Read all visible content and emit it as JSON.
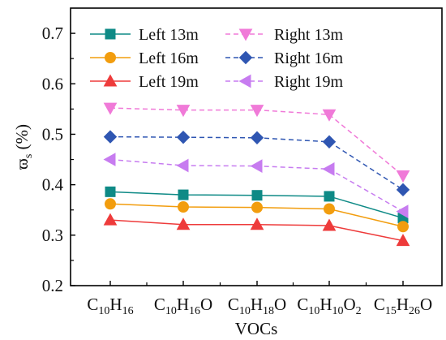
{
  "chart_data": {
    "type": "line",
    "xlabel": "VOCs",
    "ylabel": "ϖ",
    "ylabel_subscript": "s",
    "ylabel_unit": "(%)",
    "ylim": [
      0.2,
      0.75
    ],
    "yticks": [
      "0.2",
      "0.3",
      "0.4",
      "0.5",
      "0.6",
      "0.7"
    ],
    "categories": [
      {
        "base": "C",
        "parts": [
          [
            "10",
            true
          ],
          [
            "H",
            false
          ],
          [
            "16",
            true
          ]
        ]
      },
      {
        "base": "C",
        "parts": [
          [
            "10",
            true
          ],
          [
            "H",
            false
          ],
          [
            "16",
            true
          ],
          [
            "O",
            false
          ]
        ]
      },
      {
        "base": "C",
        "parts": [
          [
            "10",
            true
          ],
          [
            "H",
            false
          ],
          [
            "18",
            true
          ],
          [
            "O",
            false
          ]
        ]
      },
      {
        "base": "C",
        "parts": [
          [
            "10",
            true
          ],
          [
            "H",
            false
          ],
          [
            "10",
            true
          ],
          [
            "O",
            false
          ],
          [
            "2",
            true
          ]
        ]
      },
      {
        "base": "C",
        "parts": [
          [
            "15",
            true
          ],
          [
            "H",
            false
          ],
          [
            "26",
            true
          ],
          [
            "O",
            false
          ]
        ]
      }
    ],
    "series": [
      {
        "name": "Left 13m",
        "color": "#0e8a86",
        "marker": "square",
        "dash": false,
        "values": [
          0.386,
          0.38,
          0.379,
          0.377,
          0.334
        ]
      },
      {
        "name": "Left 16m",
        "color": "#f29d0e",
        "marker": "circle",
        "dash": false,
        "values": [
          0.362,
          0.356,
          0.355,
          0.352,
          0.317
        ]
      },
      {
        "name": "Left 19m",
        "color": "#ee3b3b",
        "marker": "triangle-up",
        "dash": false,
        "values": [
          0.33,
          0.321,
          0.321,
          0.319,
          0.289
        ]
      },
      {
        "name": "Right 13m",
        "color": "#f07ad8",
        "marker": "triangle-down",
        "dash": true,
        "values": [
          0.552,
          0.548,
          0.548,
          0.539,
          0.418
        ]
      },
      {
        "name": "Right 16m",
        "color": "#2f56b2",
        "marker": "diamond",
        "dash": true,
        "values": [
          0.495,
          0.494,
          0.493,
          0.485,
          0.39
        ]
      },
      {
        "name": "Right 19m",
        "color": "#c77cf0",
        "marker": "triangle-left",
        "dash": true,
        "values": [
          0.45,
          0.438,
          0.437,
          0.431,
          0.347
        ]
      }
    ],
    "grid": false,
    "legend_position": "top-left"
  }
}
